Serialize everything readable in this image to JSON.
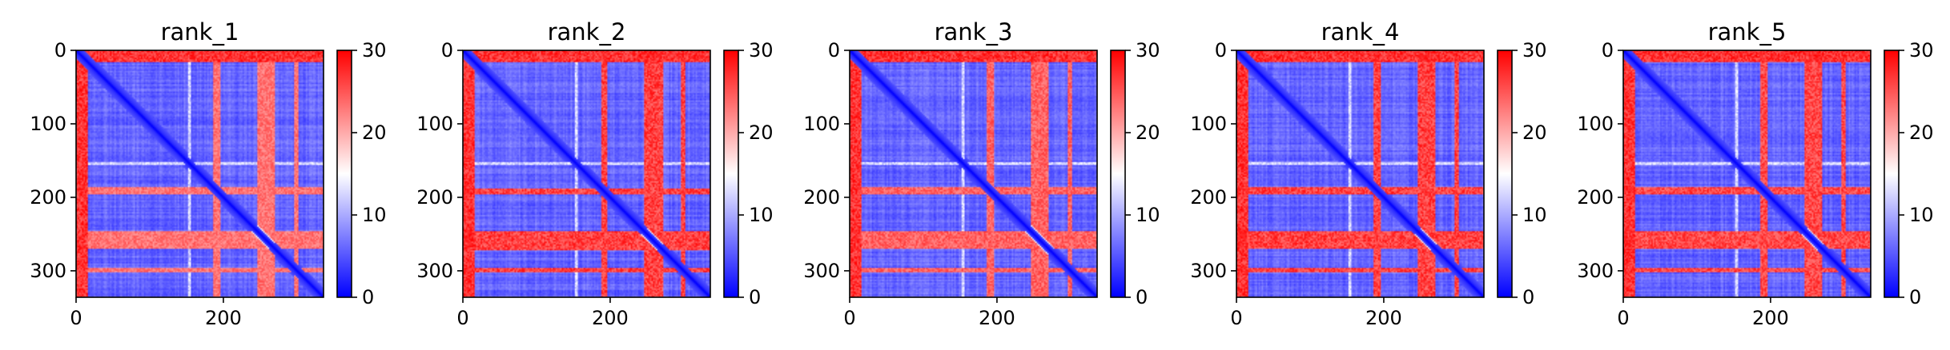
{
  "figure": {
    "colors": {
      "low": "#0000ff",
      "mid": "#ffffff",
      "high": "#ff0000"
    }
  },
  "chart_data": [
    {
      "type": "heatmap",
      "title": "rank_1",
      "xlabel": "",
      "ylabel": "",
      "xlim": [
        0,
        336
      ],
      "ylim": [
        336,
        0
      ],
      "xticks": [
        0,
        200
      ],
      "yticks": [
        0,
        100,
        200,
        300
      ],
      "colorbar": {
        "vmin": 0,
        "vmax": 30,
        "ticks": [
          0,
          10,
          20,
          30
        ],
        "colormap": "bwr"
      },
      "features": {
        "top_band_rows": [
          0,
          15
        ],
        "left_band_cols": [
          0,
          12
        ],
        "light_stripe_cols": [
          246,
          262
        ],
        "red_rows": [
          [
            186,
            196
          ],
          [
            246,
            270
          ],
          [
            296,
            302
          ]
        ],
        "light_rows": [
          [
            152,
            156
          ]
        ],
        "red_cols": [
          [
            246,
            262
          ]
        ],
        "row_band_strength": 0.72
      }
    },
    {
      "type": "heatmap",
      "title": "rank_2",
      "xlabel": "",
      "ylabel": "",
      "xlim": [
        0,
        336
      ],
      "ylim": [
        336,
        0
      ],
      "xticks": [
        0,
        200
      ],
      "yticks": [
        0,
        100,
        200,
        300
      ],
      "colorbar": {
        "vmin": 0,
        "vmax": 30,
        "ticks": [
          0,
          10,
          20,
          30
        ],
        "colormap": "bwr"
      },
      "features": {
        "top_band_rows": [
          0,
          15
        ],
        "left_band_cols": [
          0,
          12
        ],
        "light_stripe_cols": [
          250,
          264
        ],
        "red_rows": [
          [
            188,
            196
          ],
          [
            246,
            272
          ],
          [
            296,
            302
          ]
        ],
        "light_rows": [
          [
            152,
            156
          ]
        ],
        "red_cols": [
          [
            250,
            264
          ]
        ],
        "row_band_strength": 0.95
      }
    },
    {
      "type": "heatmap",
      "title": "rank_3",
      "xlabel": "",
      "ylabel": "",
      "xlim": [
        0,
        336
      ],
      "ylim": [
        336,
        0
      ],
      "xticks": [
        0,
        200
      ],
      "yticks": [
        0,
        100,
        200,
        300
      ],
      "colorbar": {
        "vmin": 0,
        "vmax": 30,
        "ticks": [
          0,
          10,
          20,
          30
        ],
        "colormap": "bwr"
      },
      "features": {
        "top_band_rows": [
          0,
          15
        ],
        "left_band_cols": [
          0,
          10
        ],
        "light_stripe_cols": [
          250,
          264
        ],
        "red_rows": [
          [
            186,
            196
          ],
          [
            246,
            270
          ],
          [
            296,
            302
          ]
        ],
        "light_rows": [
          [
            152,
            156
          ],
          [
            246,
            270
          ]
        ],
        "red_cols": [
          [
            250,
            264
          ]
        ],
        "row_band_strength": 0.8
      }
    },
    {
      "type": "heatmap",
      "title": "rank_4",
      "xlabel": "",
      "ylabel": "",
      "xlim": [
        0,
        336
      ],
      "ylim": [
        336,
        0
      ],
      "xticks": [
        0,
        200
      ],
      "yticks": [
        0,
        100,
        200,
        300
      ],
      "colorbar": {
        "vmin": 0,
        "vmax": 30,
        "ticks": [
          0,
          10,
          20,
          30
        ],
        "colormap": "bwr"
      },
      "features": {
        "top_band_rows": [
          0,
          15
        ],
        "left_band_cols": [
          0,
          10
        ],
        "light_stripe_cols": [
          250,
          264
        ],
        "red_rows": [
          [
            186,
            196
          ],
          [
            246,
            270
          ],
          [
            296,
            302
          ]
        ],
        "light_rows": [
          [
            152,
            156
          ]
        ],
        "red_cols": [
          [
            250,
            264
          ]
        ],
        "row_band_strength": 0.95
      }
    },
    {
      "type": "heatmap",
      "title": "rank_5",
      "xlabel": "",
      "ylabel": "",
      "xlim": [
        0,
        336
      ],
      "ylim": [
        336,
        0
      ],
      "xticks": [
        0,
        200
      ],
      "yticks": [
        0,
        100,
        200,
        300
      ],
      "colorbar": {
        "vmin": 0,
        "vmax": 30,
        "ticks": [
          0,
          10,
          20,
          30
        ],
        "colormap": "bwr"
      },
      "features": {
        "top_band_rows": [
          0,
          15
        ],
        "left_band_cols": [
          0,
          10
        ],
        "light_stripe_cols": [
          250,
          264
        ],
        "red_rows": [
          [
            186,
            196
          ],
          [
            246,
            270
          ],
          [
            296,
            302
          ]
        ],
        "light_rows": [
          [
            152,
            156
          ]
        ],
        "red_cols": [
          [
            250,
            264
          ]
        ],
        "row_band_strength": 0.92
      }
    }
  ]
}
